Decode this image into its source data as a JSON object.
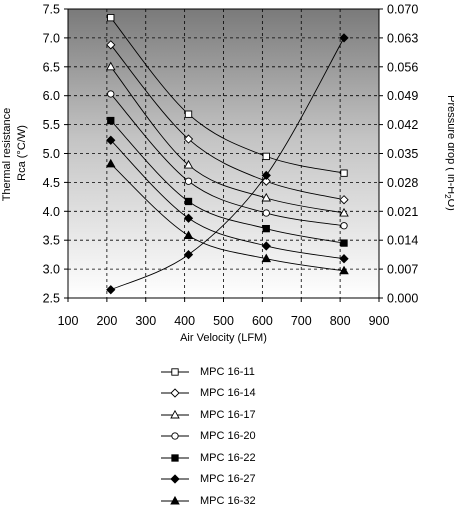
{
  "chart_data": {
    "type": "line",
    "title": "",
    "xlabel": "Air Velocity (LFM)",
    "ylabel": "Thermal resistance Rca (°C/W)",
    "ylabel_lines": [
      "Thermal resistance",
      "Rca (°C/W)"
    ],
    "y2label": "Pressure drop (in-H₂O)",
    "y2label_parts": [
      "Pressure drop  ( in-H",
      "2",
      "O)"
    ],
    "xlim": [
      100,
      900
    ],
    "ylim": [
      2.5,
      7.5
    ],
    "y2lim": [
      0.0,
      0.07
    ],
    "xticks": [
      "100",
      "200",
      "300",
      "400",
      "500",
      "600",
      "700",
      "800",
      "900"
    ],
    "yticks": [
      "2.5",
      "3.0",
      "3.5",
      "4.0",
      "4.5",
      "5.0",
      "5.5",
      "6.0",
      "6.5",
      "7.0",
      "7.5"
    ],
    "y2ticks": [
      "0.000",
      "0.007",
      "0.014",
      "0.021",
      "0.028",
      "0.035",
      "0.042",
      "0.049",
      "0.056",
      "0.063",
      "0.070"
    ],
    "grid": true,
    "legend_position": "bottom",
    "x": [
      210,
      410,
      610,
      810
    ],
    "series": [
      {
        "name": "MPC 16-11",
        "marker": "open-square",
        "values": [
          7.35,
          5.68,
          4.95,
          4.66
        ]
      },
      {
        "name": "MPC 16-14",
        "marker": "open-diamond",
        "values": [
          6.88,
          5.25,
          4.52,
          4.2
        ]
      },
      {
        "name": "MPC 16-17",
        "marker": "open-triangle",
        "values": [
          6.5,
          4.8,
          4.23,
          3.97
        ]
      },
      {
        "name": "MPC 16-20",
        "marker": "open-circle",
        "values": [
          6.03,
          4.52,
          3.97,
          3.75
        ]
      },
      {
        "name": "MPC 16-22",
        "marker": "filled-square",
        "values": [
          5.57,
          4.17,
          3.7,
          3.45
        ]
      },
      {
        "name": "MPC 16-27",
        "marker": "filled-diamond",
        "values": [
          5.23,
          3.88,
          3.4,
          3.18
        ]
      },
      {
        "name": "MPC 16-32",
        "marker": "filled-triangle",
        "values": [
          4.82,
          3.58,
          3.18,
          2.97
        ]
      }
    ],
    "pressure_drop": {
      "axis": "right",
      "marker": "filled-diamond",
      "values": [
        0.002,
        0.0105,
        0.0297,
        0.063
      ]
    }
  }
}
